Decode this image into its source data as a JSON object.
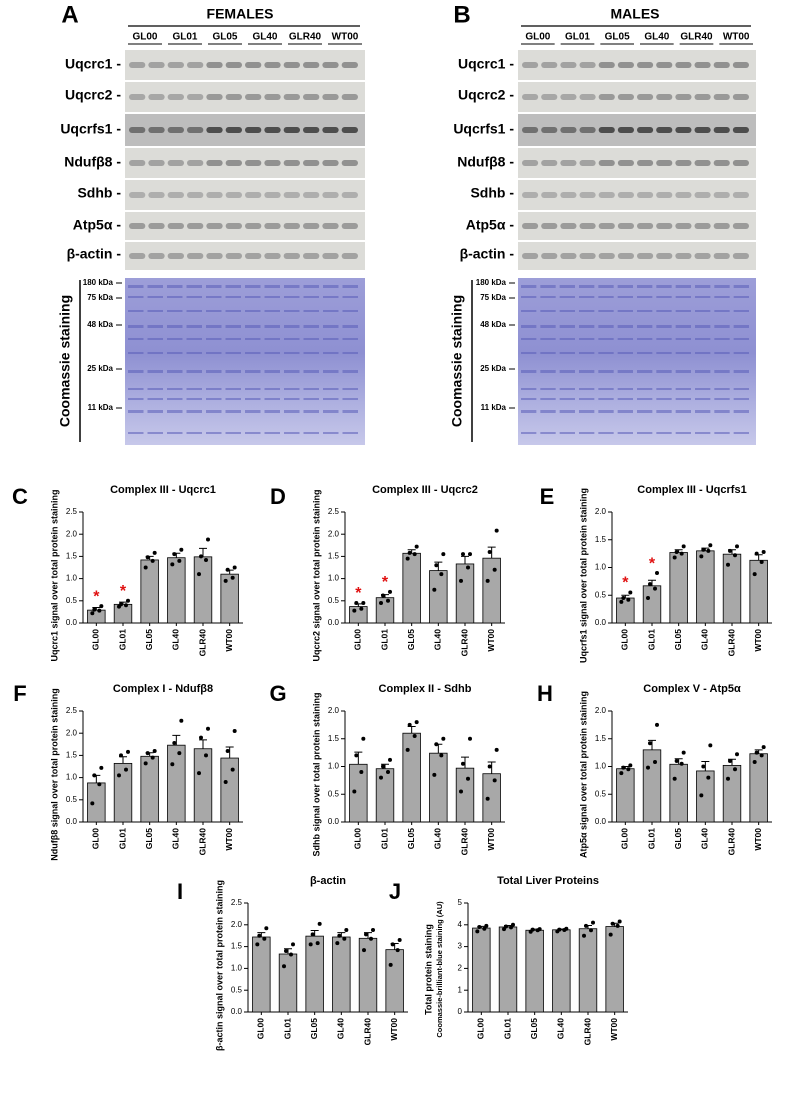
{
  "blots": {
    "panels": [
      {
        "letter": "A",
        "title": "FEMALES",
        "lanes": [
          "GL00",
          "GL01",
          "GL05",
          "GL40",
          "GLR40",
          "WT00"
        ],
        "proteins": [
          "Uqcrc1 -",
          "Uqcrc2 -",
          "Uqcrfs1 -",
          "Ndufβ8 -",
          "Sdhb -",
          "Atp5α -",
          "β-actin -"
        ],
        "kda": [
          "180 kDa",
          "75 kDa",
          "48 kDa",
          "25 kDa",
          "11 kDa"
        ],
        "gel_label": "Coomassie staining"
      },
      {
        "letter": "B",
        "title": "MALES",
        "lanes": [
          "GL00",
          "GL01",
          "GL05",
          "GL40",
          "GLR40",
          "WT00"
        ],
        "proteins": [
          "Uqcrc1 -",
          "Uqcrc2 -",
          "Uqcrfs1 -",
          "Ndufβ8 -",
          "Sdhb -",
          "Atp5α -",
          "β-actin -"
        ],
        "kda": [
          "180 kDa",
          "75 kDa",
          "48 kDa",
          "25 kDa",
          "11 kDa"
        ],
        "gel_label": "Coomassie staining"
      }
    ]
  },
  "chart_data": [
    {
      "type": "bar",
      "letter": "C",
      "title": "Complex III - Uqcrc1",
      "ylabel": [
        "Uqcrc1 signal over total protein staining"
      ],
      "categories": [
        "GL00",
        "GL01",
        "GL05",
        "GL40",
        "GLR40",
        "WT00"
      ],
      "values": [
        0.29,
        0.42,
        1.42,
        1.47,
        1.49,
        1.1
      ],
      "errors": [
        0.06,
        0.05,
        0.08,
        0.1,
        0.19,
        0.09
      ],
      "points": [
        [
          0.22,
          0.28,
          0.3,
          0.38
        ],
        [
          0.37,
          0.4,
          0.42,
          0.5
        ],
        [
          1.25,
          1.4,
          1.48,
          1.58
        ],
        [
          1.32,
          1.4,
          1.55,
          1.65
        ],
        [
          1.1,
          1.42,
          1.5,
          1.88
        ],
        [
          0.95,
          1.02,
          1.2,
          1.25
        ]
      ],
      "significant": [
        "*",
        "*",
        null,
        null,
        null,
        null
      ],
      "color": "#a8a8a8",
      "ylim": [
        0,
        2.5
      ],
      "yticks": [
        {
          "value": 0,
          "label": "0.0"
        },
        {
          "value": 0.5,
          "label": "0.5"
        },
        {
          "value": 1,
          "label": "1.0"
        },
        {
          "value": 1.5,
          "label": "1.5"
        },
        {
          "value": 2,
          "label": "2.0"
        },
        {
          "value": 2.5,
          "label": "2.5"
        }
      ]
    },
    {
      "type": "bar",
      "letter": "D",
      "title": "Complex III - Uqcrc2",
      "ylabel": [
        "Uqcrc2 signal over total protein staining"
      ],
      "categories": [
        "GL00",
        "GL01",
        "GL05",
        "GL40",
        "GLR40",
        "WT00"
      ],
      "values": [
        0.37,
        0.57,
        1.57,
        1.18,
        1.33,
        1.46
      ],
      "errors": [
        0.06,
        0.07,
        0.08,
        0.19,
        0.17,
        0.25
      ],
      "points": [
        [
          0.28,
          0.32,
          0.45,
          0.45
        ],
        [
          0.45,
          0.5,
          0.62,
          0.7
        ],
        [
          1.45,
          1.55,
          1.58,
          1.72
        ],
        [
          0.75,
          1.1,
          1.3,
          1.55
        ],
        [
          0.95,
          1.25,
          1.55,
          1.55
        ],
        [
          0.95,
          1.2,
          1.6,
          2.08
        ]
      ],
      "significant": [
        "*",
        "*",
        null,
        null,
        null,
        null
      ],
      "color": "#a8a8a8",
      "ylim": [
        0,
        2.5
      ],
      "yticks": [
        {
          "value": 0,
          "label": "0.0"
        },
        {
          "value": 0.5,
          "label": "0.5"
        },
        {
          "value": 1,
          "label": "1.0"
        },
        {
          "value": 1.5,
          "label": "1.5"
        },
        {
          "value": 2,
          "label": "2.0"
        },
        {
          "value": 2.5,
          "label": "2.5"
        }
      ]
    },
    {
      "type": "bar",
      "letter": "E",
      "title": "Complex III - Uqcrfs1",
      "ylabel": [
        "Uqcrfs1 signal over total protein staining"
      ],
      "categories": [
        "GL00",
        "GL01",
        "GL05",
        "GL40",
        "GLR40",
        "WT00"
      ],
      "values": [
        0.45,
        0.67,
        1.27,
        1.3,
        1.24,
        1.13
      ],
      "errors": [
        0.05,
        0.1,
        0.05,
        0.05,
        0.08,
        0.1
      ],
      "points": [
        [
          0.38,
          0.42,
          0.45,
          0.55
        ],
        [
          0.45,
          0.62,
          0.7,
          0.9
        ],
        [
          1.18,
          1.25,
          1.28,
          1.38
        ],
        [
          1.2,
          1.3,
          1.32,
          1.4
        ],
        [
          1.05,
          1.22,
          1.3,
          1.38
        ],
        [
          0.88,
          1.1,
          1.25,
          1.28
        ]
      ],
      "significant": [
        "*",
        "*",
        null,
        null,
        null,
        null
      ],
      "color": "#a8a8a8",
      "ylim": [
        0,
        2
      ],
      "yticks": [
        {
          "value": 0,
          "label": "0.0"
        },
        {
          "value": 0.5,
          "label": "0.5"
        },
        {
          "value": 1,
          "label": "1.0"
        },
        {
          "value": 1.5,
          "label": "1.5"
        },
        {
          "value": 2,
          "label": "2.0"
        }
      ]
    },
    {
      "type": "bar",
      "letter": "F",
      "title": "Complex I - Ndufβ8",
      "ylabel": [
        "Ndufβ8 signal over total protein staining"
      ],
      "categories": [
        "GL00",
        "GL01",
        "GL05",
        "GL40",
        "GLR40",
        "WT00"
      ],
      "values": [
        0.88,
        1.32,
        1.48,
        1.73,
        1.65,
        1.44
      ],
      "errors": [
        0.17,
        0.15,
        0.08,
        0.22,
        0.2,
        0.25
      ],
      "points": [
        [
          0.42,
          0.85,
          1.05,
          1.22
        ],
        [
          1.05,
          1.18,
          1.5,
          1.58
        ],
        [
          1.32,
          1.45,
          1.55,
          1.6
        ],
        [
          1.3,
          1.55,
          1.78,
          2.28
        ],
        [
          1.1,
          1.5,
          1.9,
          2.1
        ],
        [
          0.9,
          1.18,
          1.6,
          2.05
        ]
      ],
      "color": "#a8a8a8",
      "ylim": [
        0,
        2.5
      ],
      "yticks": [
        {
          "value": 0,
          "label": "0.0"
        },
        {
          "value": 0.5,
          "label": "0.5"
        },
        {
          "value": 1,
          "label": "1.0"
        },
        {
          "value": 1.5,
          "label": "1.5"
        },
        {
          "value": 2,
          "label": "2.0"
        },
        {
          "value": 2.5,
          "label": "2.5"
        }
      ]
    },
    {
      "type": "bar",
      "letter": "G",
      "title": "Complex II - Sdhb",
      "ylabel": [
        "Sdhb signal over total protein staining"
      ],
      "categories": [
        "GL00",
        "GL01",
        "GL05",
        "GL40",
        "GLR40",
        "WT00"
      ],
      "values": [
        1.04,
        0.96,
        1.6,
        1.24,
        0.97,
        0.87
      ],
      "errors": [
        0.22,
        0.08,
        0.12,
        0.16,
        0.2,
        0.21
      ],
      "points": [
        [
          0.55,
          0.9,
          1.2,
          1.5
        ],
        [
          0.8,
          0.9,
          1.0,
          1.12
        ],
        [
          1.3,
          1.55,
          1.75,
          1.8
        ],
        [
          0.85,
          1.2,
          1.4,
          1.5
        ],
        [
          0.55,
          0.78,
          1.05,
          1.5
        ],
        [
          0.42,
          0.75,
          1.0,
          1.3
        ]
      ],
      "color": "#a8a8a8",
      "ylim": [
        0,
        2
      ],
      "yticks": [
        {
          "value": 0,
          "label": "0.0"
        },
        {
          "value": 0.5,
          "label": "0.5"
        },
        {
          "value": 1,
          "label": "1.0"
        },
        {
          "value": 1.5,
          "label": "1.5"
        },
        {
          "value": 2,
          "label": "2.0"
        }
      ]
    },
    {
      "type": "bar",
      "letter": "H",
      "title": "Complex V - Atp5α",
      "ylabel": [
        "Atp5α signal over total protein staining"
      ],
      "categories": [
        "GL00",
        "GL01",
        "GL05",
        "GL40",
        "GLR40",
        "WT00"
      ],
      "values": [
        0.96,
        1.3,
        1.04,
        0.92,
        1.02,
        1.23
      ],
      "errors": [
        0.04,
        0.17,
        0.1,
        0.17,
        0.11,
        0.07
      ],
      "points": [
        [
          0.88,
          0.95,
          0.98,
          1.02
        ],
        [
          0.98,
          1.08,
          1.42,
          1.75
        ],
        [
          0.78,
          1.05,
          1.1,
          1.25
        ],
        [
          0.48,
          0.8,
          1.0,
          1.38
        ],
        [
          0.78,
          0.95,
          1.1,
          1.22
        ],
        [
          1.08,
          1.2,
          1.25,
          1.35
        ]
      ],
      "color": "#a8a8a8",
      "ylim": [
        0,
        2
      ],
      "yticks": [
        {
          "value": 0,
          "label": "0.0"
        },
        {
          "value": 0.5,
          "label": "0.5"
        },
        {
          "value": 1,
          "label": "1.0"
        },
        {
          "value": 1.5,
          "label": "1.5"
        },
        {
          "value": 2,
          "label": "2.0"
        }
      ]
    },
    {
      "type": "bar",
      "letter": "I",
      "title": "β-actin",
      "ylabel": [
        "β-actin signal over total protein staining"
      ],
      "categories": [
        "GL00",
        "GL01",
        "GL05",
        "GL40",
        "GLR40",
        "WT00"
      ],
      "values": [
        1.72,
        1.33,
        1.74,
        1.72,
        1.69,
        1.43
      ],
      "errors": [
        0.1,
        0.12,
        0.13,
        0.1,
        0.13,
        0.14
      ],
      "points": [
        [
          1.55,
          1.68,
          1.75,
          1.92
        ],
        [
          1.05,
          1.32,
          1.4,
          1.55
        ],
        [
          1.55,
          1.58,
          1.78,
          2.02
        ],
        [
          1.58,
          1.68,
          1.75,
          1.88
        ],
        [
          1.42,
          1.68,
          1.78,
          1.88
        ],
        [
          1.08,
          1.42,
          1.55,
          1.65
        ]
      ],
      "color": "#a8a8a8",
      "ylim": [
        0,
        2.5
      ],
      "yticks": [
        {
          "value": 0,
          "label": "0.0"
        },
        {
          "value": 0.5,
          "label": "0.5"
        },
        {
          "value": 1,
          "label": "1.0"
        },
        {
          "value": 1.5,
          "label": "1.5"
        },
        {
          "value": 2,
          "label": "2.0"
        },
        {
          "value": 2.5,
          "label": "2.5"
        }
      ]
    },
    {
      "type": "bar",
      "letter": "J",
      "title": "Total Liver Proteins",
      "ylabel": [
        "Total protein staining",
        "Coomassie-brilliant-blue staining (AU)"
      ],
      "categories": [
        "GL00",
        "GL01",
        "GL05",
        "GL40",
        "GLR40",
        "WT00"
      ],
      "values": [
        3.85,
        3.9,
        3.75,
        3.77,
        3.82,
        3.92
      ],
      "errors": [
        0.08,
        0.07,
        0.05,
        0.04,
        0.15,
        0.15
      ],
      "points": [
        [
          3.7,
          3.82,
          3.9,
          3.95
        ],
        [
          3.8,
          3.88,
          3.92,
          4.0
        ],
        [
          3.68,
          3.75,
          3.78,
          3.8
        ],
        [
          3.7,
          3.76,
          3.78,
          3.82
        ],
        [
          3.5,
          3.75,
          3.95,
          4.1
        ],
        [
          3.55,
          3.95,
          4.05,
          4.15
        ]
      ],
      "color": "#a8a8a8",
      "ylim": [
        0,
        5
      ],
      "yticks": [
        0,
        1,
        2,
        3,
        4,
        5
      ]
    }
  ]
}
